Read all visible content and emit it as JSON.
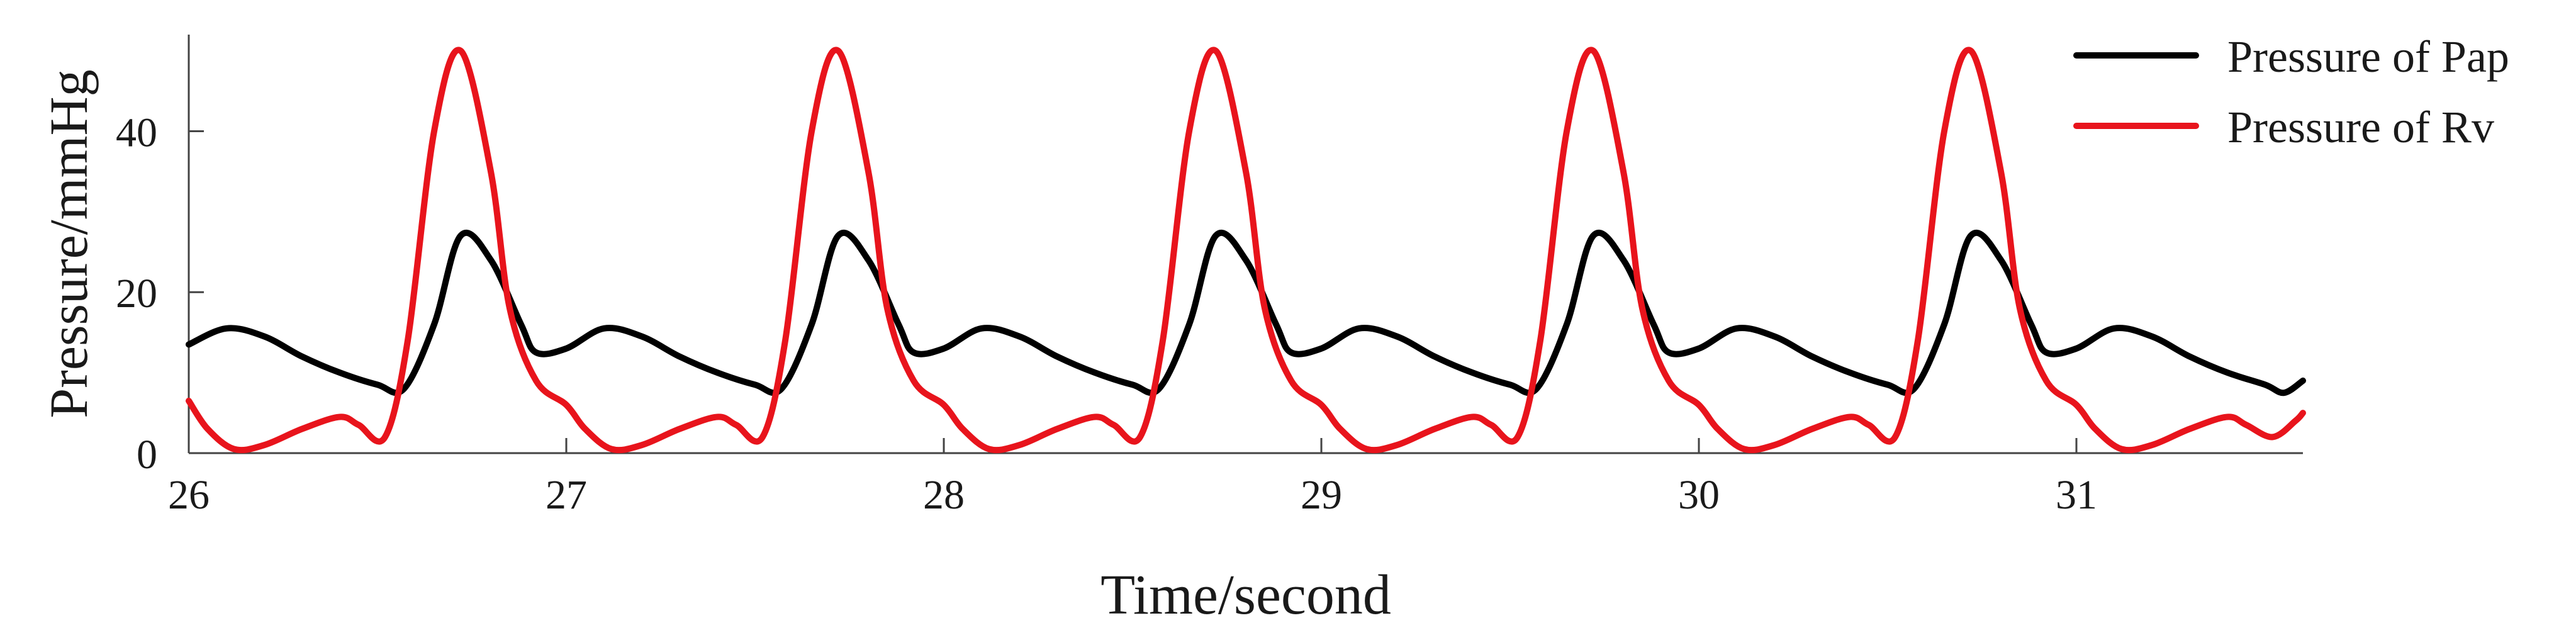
{
  "chart_data": {
    "type": "line",
    "title": "",
    "xlabel": "Time/second",
    "ylabel": "Pressure/mmHg",
    "xlim": [
      26.0,
      31.6
    ],
    "ylim": [
      0,
      52
    ],
    "xticks": [
      26,
      27,
      28,
      29,
      30,
      31
    ],
    "yticks": [
      0,
      20,
      40
    ],
    "grid": false,
    "legend": "top-right",
    "series": [
      {
        "name": "Pressure of Pap",
        "color": "#000000",
        "x": [
          26.0,
          26.1,
          26.2,
          26.3,
          26.4,
          26.5,
          26.57,
          26.65,
          26.72,
          26.8,
          26.88,
          26.92,
          27.0,
          27.1,
          27.2,
          27.3,
          27.4,
          27.5,
          27.57,
          27.65,
          27.72,
          27.8,
          27.88,
          27.92,
          28.0,
          28.1,
          28.2,
          28.3,
          28.4,
          28.5,
          28.57,
          28.65,
          28.72,
          28.8,
          28.88,
          28.92,
          29.0,
          29.1,
          29.2,
          29.3,
          29.4,
          29.5,
          29.57,
          29.65,
          29.72,
          29.8,
          29.88,
          29.92,
          30.0,
          30.1,
          30.2,
          30.3,
          30.4,
          30.5,
          30.57,
          30.65,
          30.72,
          30.8,
          30.88,
          30.92,
          31.0,
          31.1,
          31.2,
          31.3,
          31.4,
          31.5,
          31.55,
          31.6
        ],
        "y": [
          13.5,
          15.5,
          14.5,
          12.0,
          10.0,
          8.5,
          8.0,
          16.0,
          27.0,
          24.0,
          16.0,
          12.5,
          13.0,
          15.5,
          14.5,
          12.0,
          10.0,
          8.5,
          8.0,
          16.0,
          27.0,
          24.0,
          16.0,
          12.5,
          13.0,
          15.5,
          14.5,
          12.0,
          10.0,
          8.5,
          8.0,
          16.0,
          27.0,
          24.0,
          16.0,
          12.5,
          13.0,
          15.5,
          14.5,
          12.0,
          10.0,
          8.5,
          8.0,
          16.0,
          27.0,
          24.0,
          16.0,
          12.5,
          13.0,
          15.5,
          14.5,
          12.0,
          10.0,
          8.5,
          8.0,
          16.0,
          27.0,
          24.0,
          16.0,
          12.5,
          13.0,
          15.5,
          14.5,
          12.0,
          10.0,
          8.5,
          7.5,
          9.0
        ]
      },
      {
        "name": "Pressure of Rv",
        "color": "#e8141c",
        "x": [
          26.0,
          26.05,
          26.12,
          26.2,
          26.3,
          26.4,
          26.45,
          26.52,
          26.58,
          26.65,
          26.72,
          26.8,
          26.85,
          26.92,
          27.0,
          27.05,
          27.12,
          27.2,
          27.3,
          27.4,
          27.45,
          27.52,
          27.58,
          27.65,
          27.72,
          27.8,
          27.85,
          27.92,
          28.0,
          28.05,
          28.12,
          28.2,
          28.3,
          28.4,
          28.45,
          28.52,
          28.58,
          28.65,
          28.72,
          28.8,
          28.85,
          28.92,
          29.0,
          29.05,
          29.12,
          29.2,
          29.3,
          29.4,
          29.45,
          29.52,
          29.58,
          29.65,
          29.72,
          29.8,
          29.85,
          29.92,
          30.0,
          30.05,
          30.12,
          30.2,
          30.3,
          30.4,
          30.45,
          30.52,
          30.58,
          30.65,
          30.72,
          30.8,
          30.85,
          30.92,
          31.0,
          31.05,
          31.12,
          31.2,
          31.3,
          31.4,
          31.45,
          31.52,
          31.58,
          31.6
        ],
        "y": [
          6.5,
          3.0,
          0.5,
          1.0,
          3.0,
          4.5,
          3.5,
          2.0,
          14.0,
          40.0,
          50.0,
          35.0,
          18.0,
          9.0,
          6.0,
          3.0,
          0.5,
          1.0,
          3.0,
          4.5,
          3.5,
          2.0,
          14.0,
          40.0,
          50.0,
          35.0,
          18.0,
          9.0,
          6.0,
          3.0,
          0.5,
          1.0,
          3.0,
          4.5,
          3.5,
          2.0,
          14.0,
          40.0,
          50.0,
          35.0,
          18.0,
          9.0,
          6.0,
          3.0,
          0.5,
          1.0,
          3.0,
          4.5,
          3.5,
          2.0,
          14.0,
          40.0,
          50.0,
          35.0,
          18.0,
          9.0,
          6.0,
          3.0,
          0.5,
          1.0,
          3.0,
          4.5,
          3.5,
          2.0,
          14.0,
          40.0,
          50.0,
          35.0,
          18.0,
          9.0,
          6.0,
          3.0,
          0.5,
          1.0,
          3.0,
          4.5,
          3.5,
          2.0,
          4.0,
          5.0
        ]
      }
    ]
  }
}
